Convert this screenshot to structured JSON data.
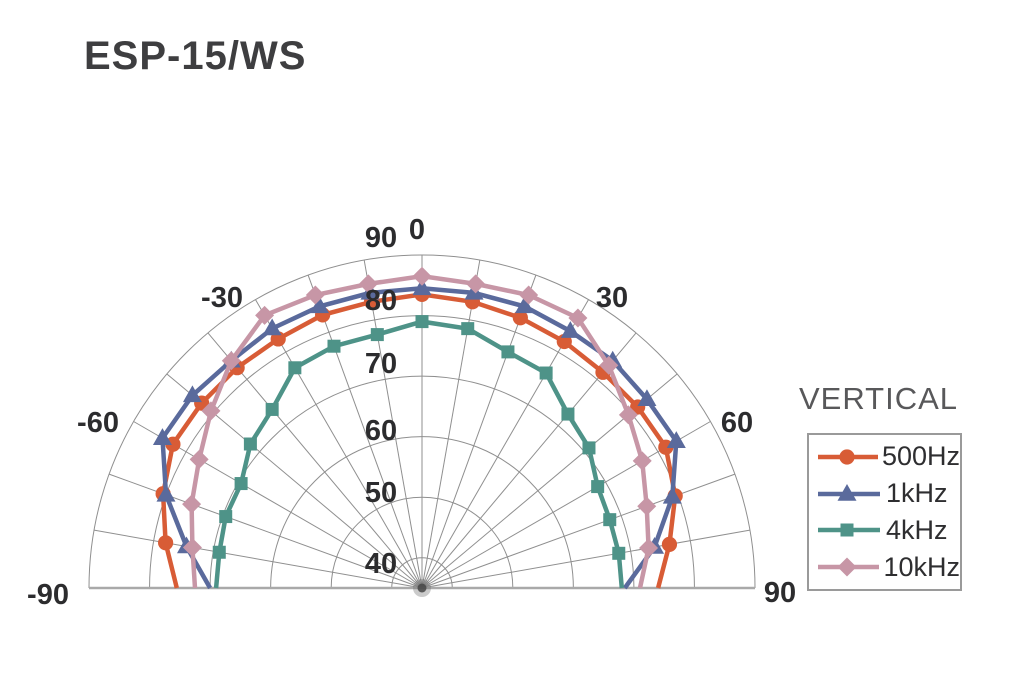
{
  "page": {
    "title": "ESP-15/WS"
  },
  "legend": {
    "title": "VERTICAL"
  },
  "chart_data": {
    "type": "line",
    "polar": true,
    "title": "ESP-15/WS",
    "subtitle": "VERTICAL",
    "angle_unit": "degrees",
    "grid": true,
    "legend_position": "right",
    "angles": [
      -90,
      -80,
      -70,
      -60,
      -50,
      -40,
      -30,
      -20,
      -10,
      0,
      10,
      20,
      30,
      40,
      50,
      60,
      70,
      80,
      90
    ],
    "angle_tick_labels": [
      "-90",
      "-60",
      "-30",
      "0",
      "30",
      "60",
      "90"
    ],
    "angle_ticks": [
      -90,
      -60,
      -30,
      0,
      30,
      60,
      90
    ],
    "radial_axis": {
      "min": 35,
      "max": 90,
      "rings": [
        40,
        50,
        60,
        70,
        80,
        90
      ],
      "tick_labels": [
        "40",
        "50",
        "60",
        "70",
        "80",
        "90"
      ]
    },
    "colors": {
      "grid": "#8f8f8f",
      "baseline": "#a9a9a9",
      "tick_text": "#2c2c2e",
      "series_500hz": "#d85c36",
      "series_1khz": "#5a6a9c",
      "series_4khz": "#4e9388",
      "series_10khz": "#c796a6"
    },
    "series": [
      {
        "name": "500Hz",
        "color": "#d85c36",
        "marker": "circle",
        "values": [
          75.5,
          78,
          80.5,
          82.5,
          82.5,
          82.5,
          82.5,
          83,
          83,
          83.5,
          83,
          82.5,
          82,
          81.5,
          81.5,
          81.5,
          79.5,
          76.5,
          74
        ]
      },
      {
        "name": "1kHz",
        "color": "#5a6a9c",
        "marker": "triangle",
        "values": [
          70,
          74.5,
          80,
          84.5,
          84.5,
          84,
          84.5,
          84.5,
          84.5,
          84.5,
          84.5,
          84.5,
          84,
          84,
          83.5,
          83.5,
          79,
          74,
          68.5
        ]
      },
      {
        "name": "4kHz",
        "color": "#4e9388",
        "marker": "square",
        "values": [
          69,
          69,
          69.5,
          69.5,
          72,
          73.5,
          77,
          77.5,
          77.5,
          79,
          78.5,
          76.5,
          76,
          72.5,
          71,
          68.5,
          68,
          68,
          68
        ]
      },
      {
        "name": "10kHz",
        "color": "#c796a6",
        "marker": "diamond",
        "values": [
          72.5,
          73.5,
          75.5,
          77.5,
          80.5,
          84,
          87,
          86.5,
          86,
          86.5,
          86,
          86.5,
          86.5,
          83,
          79.5,
          77,
          74.5,
          73,
          71
        ]
      }
    ]
  }
}
